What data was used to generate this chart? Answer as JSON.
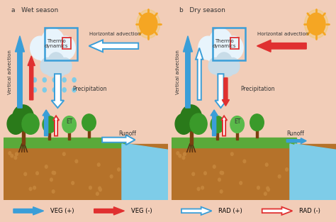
{
  "background_color": "#f2cdb8",
  "panel_a_title": "a   Wet season",
  "panel_b_title": "b   Dry season",
  "ground_color": "#b5722a",
  "grass_color": "#5aaa3a",
  "water_color": "#7ecce8",
  "blue_solid": "#3a9ed8",
  "red_solid": "#e03030",
  "blue_outline": "#7ecce8",
  "sun_color": "#f5a623",
  "sun_inner": "#f5c842",
  "cloud_color": "#e8f4fc",
  "cloud_dark": "#c8dce8",
  "rain_color": "#7ecce8",
  "tree_dark": "#2a7a1a",
  "tree_med": "#3a9a2a",
  "tree_light": "#5aba4a",
  "trunk_color": "#7a4010",
  "root_color": "#5a3010",
  "text_color": "#333333",
  "labels": {
    "vertical_advection": "Vertical advection",
    "horizontal_advection": "Horizontal advection",
    "thermo_dynamics": "Thermo\ndynamics",
    "precipitation": "Precipitation",
    "et": "ET",
    "runoff": "Runoff",
    "veg_plus": "VEG (+)",
    "veg_minus": "VEG (-)",
    "rad_plus": "RAD (+)",
    "rad_minus": "RAD (-)"
  }
}
